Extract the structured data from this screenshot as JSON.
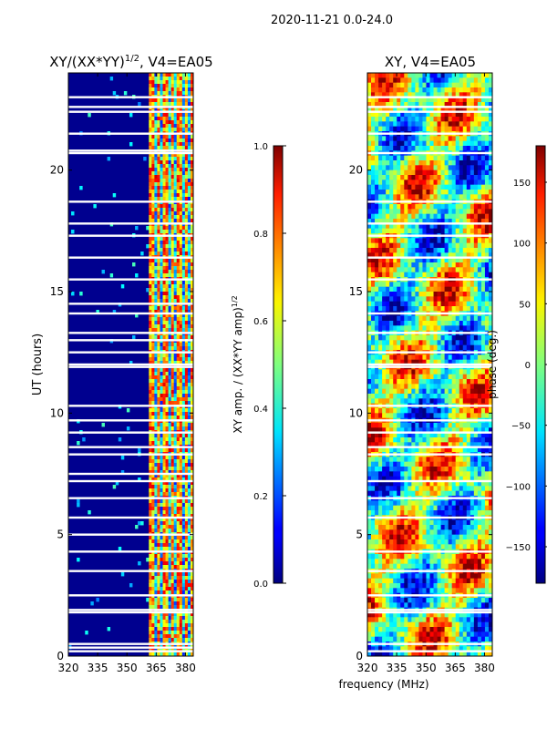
{
  "suptitle": "2020-11-21 0.0-24.0",
  "shared_xlabel": "frequency (MHz)",
  "chart_data": [
    {
      "type": "heatmap",
      "title": "XY/(XX*YY)",
      "title_sup": "1/2",
      "title_suffix": ", V4=EA05",
      "ylabel": "UT (hours)",
      "xlim": [
        320,
        384
      ],
      "ylim": [
        0,
        24
      ],
      "xticks": [
        "320",
        "335",
        "350",
        "365",
        "380"
      ],
      "xtick_values": [
        320,
        335,
        350,
        365,
        380
      ],
      "yticks": [
        "0",
        "5",
        "10",
        "15",
        "20"
      ],
      "ytick_values": [
        0,
        5,
        10,
        15,
        20
      ],
      "background_color": "#00008f",
      "bright_band_start_mhz": 361,
      "flagged_ut_hours": [
        0.2,
        0.35,
        0.5,
        1.8,
        1.9,
        2.5,
        3.5,
        4.3,
        5.0,
        5.7,
        6.5,
        7.2,
        7.5,
        8.3,
        8.6,
        9.2,
        9.7,
        10.3,
        11.9,
        12.0,
        12.5,
        13.0,
        13.3,
        14.1,
        14.5,
        15.5,
        16.4,
        17.3,
        17.8,
        18.7,
        20.7,
        20.8,
        21.5,
        22.4,
        22.6,
        23.0
      ],
      "colorbar": {
        "label": "XY amp. / (XX*YY amp)",
        "label_sup": "1/2",
        "min": 0.0,
        "max": 1.0,
        "ticks": [
          "0.0",
          "0.2",
          "0.4",
          "0.6",
          "0.8",
          "1.0"
        ],
        "tick_values": [
          0.0,
          0.2,
          0.4,
          0.6,
          0.8,
          1.0
        ]
      }
    },
    {
      "type": "heatmap",
      "title": "XY, V4=EA05",
      "ylabel": "",
      "xlim": [
        320,
        384
      ],
      "ylim": [
        0,
        24
      ],
      "xticks": [
        "320",
        "335",
        "350",
        "365",
        "380"
      ],
      "xtick_values": [
        320,
        335,
        350,
        365,
        380
      ],
      "yticks": [
        "0",
        "5",
        "10",
        "15",
        "20"
      ],
      "ytick_values": [
        0,
        5,
        10,
        15,
        20
      ],
      "flagged_ut_hours": [
        0.2,
        0.5,
        1.8,
        1.9,
        2.5,
        3.5,
        4.3,
        5.7,
        6.5,
        7.2,
        8.3,
        8.6,
        9.2,
        9.7,
        10.3,
        11.9,
        12.0,
        12.5,
        13.3,
        14.1,
        15.5,
        16.4,
        17.3,
        17.8,
        18.7,
        20.7,
        21.5,
        22.4,
        22.6,
        23.0
      ],
      "colorbar": {
        "label": "phase (deg.)",
        "min": -180,
        "max": 180,
        "ticks": [
          "−150",
          "−100",
          "−50",
          "0",
          "50",
          "100",
          "150"
        ],
        "tick_values": [
          -150,
          -100,
          -50,
          0,
          50,
          100,
          150
        ]
      }
    }
  ]
}
